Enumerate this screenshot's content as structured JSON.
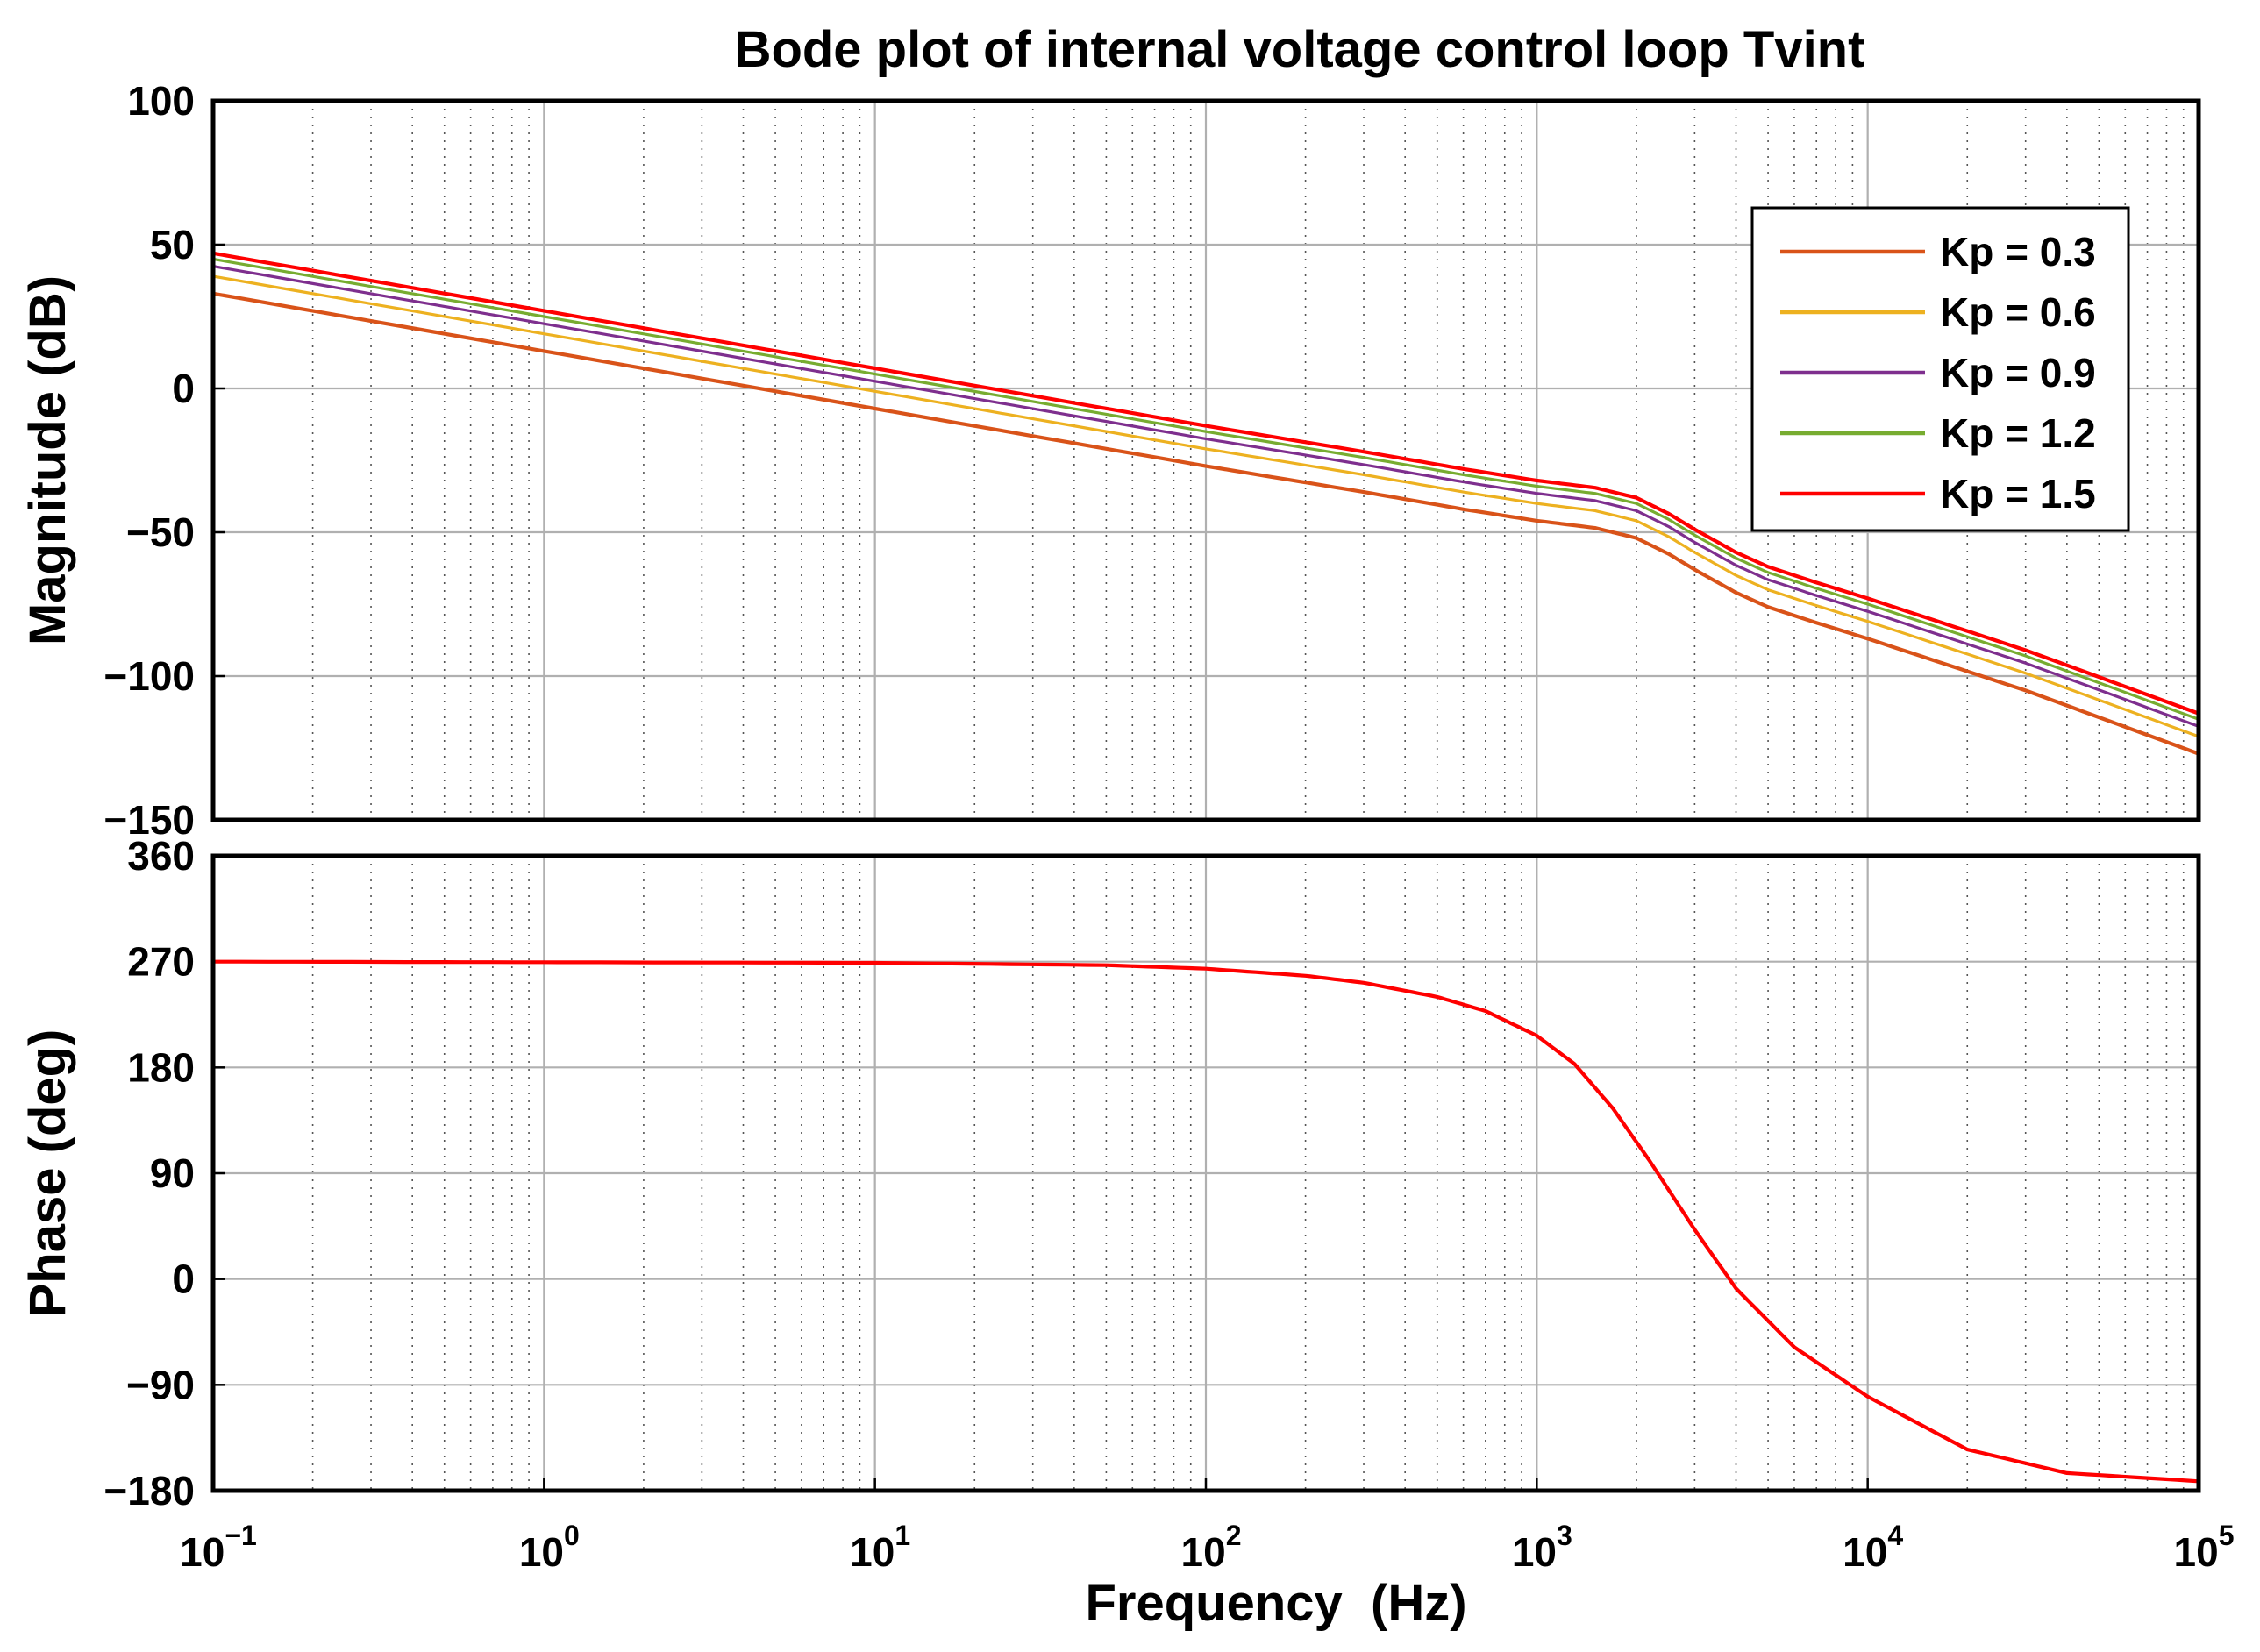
{
  "title": "Bode plot of internal voltage control loop Tvint",
  "chart_data": [
    {
      "type": "line",
      "panel": "magnitude",
      "ylabel": "Magnitude (dB)",
      "ylim": [
        -150,
        100
      ],
      "yticks": [
        100,
        50,
        0,
        -50,
        -100,
        -150
      ],
      "ytick_labels": [
        "100",
        "50",
        "0",
        "−50",
        "−100",
        "−150"
      ],
      "xscale": "log",
      "xlim": [
        0.1,
        100000
      ],
      "grid": true,
      "legend_position": "top-right",
      "x": [
        0.1,
        1,
        10,
        100,
        300,
        600,
        1000,
        1500,
        2000,
        2500,
        3000,
        4000,
        5000,
        7000,
        10000,
        30000,
        100000
      ],
      "series": [
        {
          "name": "Kp = 0.3",
          "color": "#d95319",
          "values": [
            33,
            13,
            -7,
            -27,
            -36,
            -42,
            -46,
            -48.5,
            -52,
            -57.5,
            -63,
            -71,
            -76,
            -81.5,
            -87,
            -105,
            -127
          ]
        },
        {
          "name": "Kp = 0.6",
          "color": "#edb120",
          "values": [
            39,
            19,
            -1,
            -21,
            -30,
            -36,
            -40,
            -42.5,
            -46,
            -51.5,
            -57,
            -65,
            -70,
            -75.5,
            -81,
            -99,
            -121
          ]
        },
        {
          "name": "Kp = 0.9",
          "color": "#7e2f8e",
          "values": [
            42.5,
            22.5,
            2.5,
            -17.5,
            -26.5,
            -32.5,
            -36.5,
            -39,
            -42.5,
            -48,
            -53.5,
            -61.5,
            -66.5,
            -72,
            -77.5,
            -95.5,
            -117.5
          ]
        },
        {
          "name": "Kp = 1.2",
          "color": "#77ac30",
          "values": [
            45,
            25,
            5,
            -15,
            -24,
            -30,
            -34,
            -36.5,
            -40,
            -45.5,
            -51,
            -59,
            -64,
            -69.5,
            -75,
            -93,
            -115
          ]
        },
        {
          "name": "Kp = 1.5",
          "color": "#ff0000",
          "values": [
            47,
            27,
            7,
            -13,
            -22,
            -28,
            -32,
            -34.5,
            -38,
            -43.5,
            -49,
            -57,
            -62,
            -67.5,
            -73,
            -91,
            -113
          ]
        }
      ]
    },
    {
      "type": "line",
      "panel": "phase",
      "ylabel": "Phase (deg)",
      "xlabel": "Frequency  (Hz)",
      "ylim": [
        -180,
        360
      ],
      "yticks": [
        360,
        270,
        180,
        90,
        0,
        -90,
        -180
      ],
      "ytick_labels": [
        "360",
        "270",
        "180",
        "90",
        "0",
        "−90",
        "−180"
      ],
      "xscale": "log",
      "xlim": [
        0.1,
        100000
      ],
      "xtick_bases": [
        "10",
        "10",
        "10",
        "10",
        "10",
        "10",
        "10"
      ],
      "xtick_exponents": [
        "−1",
        "0",
        "1",
        "2",
        "3",
        "4",
        "5"
      ],
      "grid": true,
      "x": [
        0.1,
        1,
        10,
        50,
        100,
        200,
        300,
        500,
        700,
        1000,
        1300,
        1700,
        2200,
        3000,
        4000,
        6000,
        10000,
        20000,
        40000,
        100000
      ],
      "series": [
        {
          "name": "Phase",
          "color": "#ff0000",
          "values": [
            270,
            269.5,
            269,
            267,
            264,
            258,
            252,
            240,
            228,
            207,
            183,
            145,
            100,
            42,
            -8,
            -58,
            -100,
            -145,
            -165,
            -172
          ]
        }
      ]
    }
  ]
}
